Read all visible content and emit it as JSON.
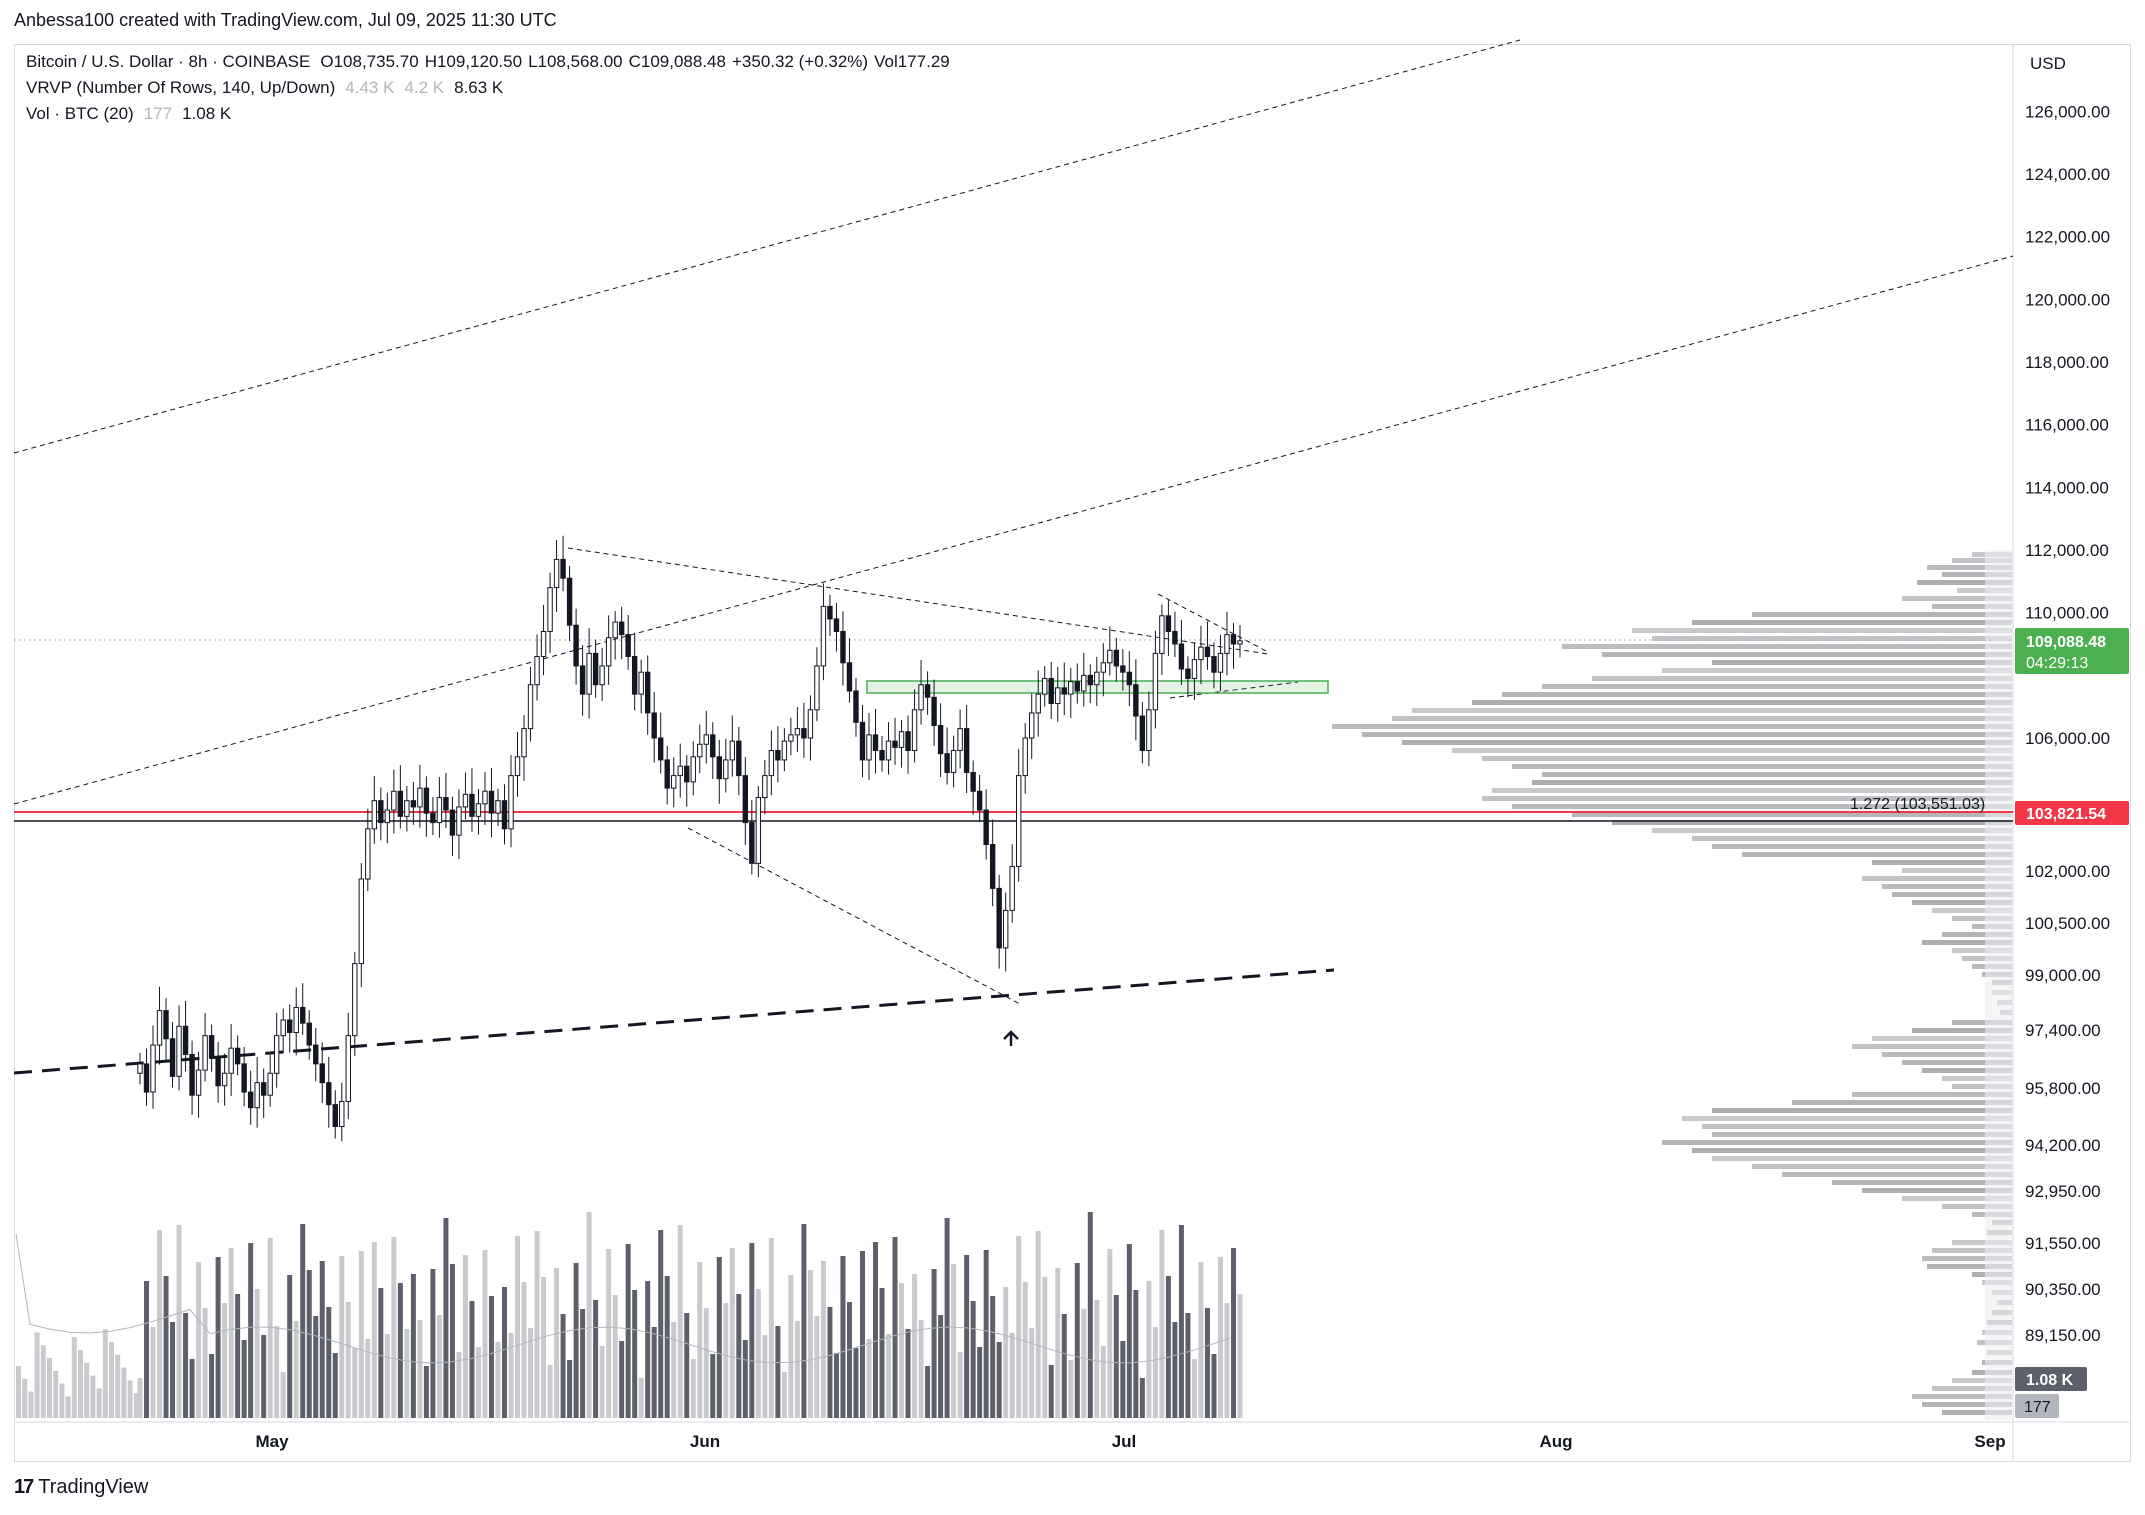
{
  "header": {
    "attribution": "Anbessa100 created with TradingView.com, Jul 09, 2025 11:30 UTC"
  },
  "legend": {
    "symbol": "Bitcoin / U.S. Dollar · 8h · COINBASE",
    "open": "O108,735.70",
    "high": "H109,120.50",
    "low": "L108,568.00",
    "close": "C109,088.48",
    "change": "+350.32 (+0.32%)",
    "volume": "Vol177.29",
    "vrvp_label": "VRVP (Number Of Rows, 140, Up/Down)",
    "vrvp_v1": "4.43 K",
    "vrvp_v2": "4.2 K",
    "vrvp_v3": "8.63 K",
    "vol_label": "Vol · BTC (20)",
    "vol_v1": "177",
    "vol_v2": "1.08 K"
  },
  "currency": "USD",
  "footer": {
    "brand": "TradingView"
  },
  "colors": {
    "up": "#089981",
    "down": "#f23645",
    "candle": "#131722",
    "vol_up": "#c8cace",
    "vol_down": "#5d606b",
    "price_tag": "#4caf50",
    "level_tag": "#f23645"
  },
  "chart_data": {
    "type": "candlestick",
    "title": "Bitcoin / U.S. Dollar · 8h · COINBASE",
    "y_ticks": [
      "126,000.00",
      "124,000.00",
      "122,000.00",
      "120,000.00",
      "118,000.00",
      "116,000.00",
      "114,000.00",
      "112,000.00",
      "110,000.00",
      "106,000.00",
      "102,000.00",
      "100,500.00",
      "99,000.00",
      "97,400.00",
      "95,800.00",
      "94,200.00",
      "92,950.00",
      "91,550.00",
      "90,350.00",
      "89,150.00"
    ],
    "x_ticks": [
      "May",
      "Jun",
      "Jul",
      "Aug",
      "Sep"
    ],
    "ylim": [
      86000,
      128000
    ],
    "last_price": "109,088.48",
    "countdown": "04:29:13",
    "level_price": "103,821.54",
    "fib_label": "1.272 (103,551.03)",
    "vol_last": "1.08 K",
    "vol_avg": "177",
    "closes": [
      95600,
      94700,
      96200,
      97300,
      96400,
      95200,
      96800,
      95900,
      94600,
      95400,
      96500,
      95800,
      94900,
      95300,
      96100,
      95600,
      94700,
      94200,
      95000,
      94600,
      95300,
      96500,
      97000,
      96600,
      97400,
      96900,
      96200,
      95600,
      95000,
      94300,
      93600,
      94400,
      96500,
      98800,
      101500,
      103100,
      104000,
      103300,
      103700,
      104300,
      103500,
      104000,
      103800,
      104400,
      103600,
      103300,
      104100,
      103700,
      102900,
      103800,
      104200,
      103500,
      103900,
      104300,
      103600,
      104000,
      103100,
      104800,
      105400,
      106300,
      107700,
      108600,
      109400,
      110800,
      111700,
      111100,
      109600,
      108300,
      107400,
      108700,
      107700,
      108300,
      109200,
      109700,
      109300,
      108600,
      107400,
      108100,
      106800,
      106000,
      105300,
      104400,
      104800,
      105100,
      104600,
      105400,
      105800,
      106100,
      105400,
      104700,
      105300,
      105900,
      104800,
      103300,
      102000,
      104100,
      104800,
      105600,
      105300,
      105900,
      106100,
      106300,
      106000,
      106900,
      108300,
      110200,
      109800,
      109400,
      108400,
      107500,
      106500,
      105300,
      106100,
      105600,
      105300,
      105900,
      105700,
      106200,
      105600,
      106900,
      107700,
      107300,
      106400,
      105500,
      104900,
      105600,
      106300,
      104900,
      104300,
      103700,
      102600,
      101200,
      99300,
      100500,
      101900,
      104800,
      106000,
      106800,
      107400,
      107900,
      107100,
      107600,
      107400,
      107800,
      107500,
      108000,
      107700,
      108100,
      108400,
      108800,
      108300,
      108100,
      107700,
      106700,
      105600,
      106900,
      108700,
      109900,
      109400,
      109000,
      108200,
      107900,
      108500,
      108900,
      108600,
      108100,
      108700,
      109300,
      109000,
      109100
    ]
  }
}
